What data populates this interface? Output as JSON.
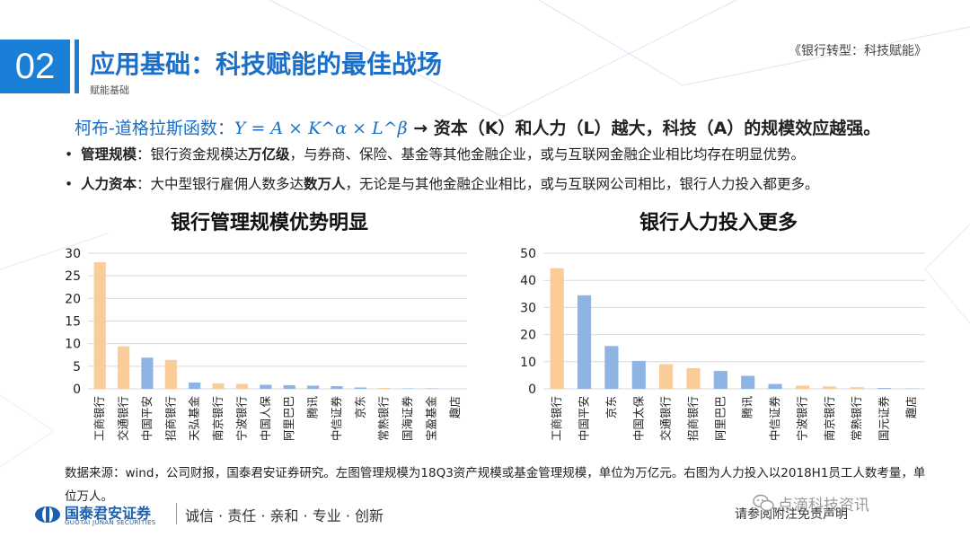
{
  "header": {
    "section_number": "02",
    "title": "应用基础：科技赋能的最佳战场",
    "subtitle": "赋能基础",
    "report_title": "《银行转型：科技赋能》"
  },
  "formula": {
    "label": "柯布-道格拉斯函数：",
    "expression": "Y = A × K^α × L^β",
    "conclusion": "→ 资本（K）和人力（L）越大，科技（A）的规模效应越强。"
  },
  "bullets": [
    {
      "bold": "管理规模",
      "text_a": "：银行资金规模达",
      "bold2": "万亿级",
      "text_b": "，与券商、保险、基金等其他金融企业，或与互联网金融企业相比均存在明显优势。"
    },
    {
      "bold": "人力资本",
      "text_a": "：大中型银行雇佣人数多达",
      "bold2": "数万人",
      "text_b": "，无论是与其他金融企业相比，或与互联网公司相比，银行人力投入都更多。"
    }
  ],
  "colors": {
    "accent": "#1a7fd6",
    "bank": "#f9cc9a",
    "other": "#8eb4e3"
  },
  "chart_data": [
    {
      "type": "bar",
      "title": "银行管理规模优势明显",
      "categories": [
        "工商银行",
        "交通银行",
        "中国平安",
        "招商银行",
        "天弘基金",
        "南京银行",
        "宁波银行",
        "中国人保",
        "阿里巴巴",
        "腾讯",
        "中信证券",
        "京东",
        "常熟银行",
        "国海证券",
        "宝盈基金",
        "趣店"
      ],
      "values": [
        28.0,
        9.4,
        6.9,
        6.4,
        1.4,
        1.2,
        1.1,
        0.9,
        0.8,
        0.7,
        0.6,
        0.3,
        0.2,
        0.1,
        0.1,
        0.0
      ],
      "category_kind": [
        "bank",
        "bank",
        "other",
        "bank",
        "other",
        "bank",
        "bank",
        "other",
        "other",
        "other",
        "other",
        "other",
        "bank",
        "other",
        "other",
        "other"
      ],
      "ylim": [
        0,
        30
      ],
      "yticks": [
        0,
        5,
        10,
        15,
        20,
        25,
        30
      ],
      "grid": true
    },
    {
      "type": "bar",
      "title": "银行人力投入更多",
      "categories": [
        "工商银行",
        "中国平安",
        "京东",
        "中国太保",
        "交通银行",
        "招商银行",
        "阿里巴巴",
        "腾讯",
        "中信证券",
        "宁波银行",
        "南京银行",
        "常熟银行",
        "国元证券",
        "趣店"
      ],
      "values": [
        44.5,
        34.5,
        15.8,
        10.3,
        9.1,
        7.6,
        6.6,
        4.8,
        1.8,
        1.2,
        0.9,
        0.6,
        0.3,
        0.1
      ],
      "category_kind": [
        "bank",
        "other",
        "other",
        "other",
        "bank",
        "bank",
        "other",
        "other",
        "other",
        "bank",
        "bank",
        "bank",
        "other",
        "other"
      ],
      "ylim": [
        0,
        50
      ],
      "yticks": [
        0,
        10,
        20,
        30,
        40,
        50
      ],
      "grid": true
    }
  ],
  "source_note": "数据来源：wind，公司财报，国泰君安证券研究。左图管理规模为18Q3资产规模或基金管理规模，单位为万亿元。右图为人力投入以2018H1员工人数考量，单位万人。",
  "footer": {
    "company_cn": "国泰君安证券",
    "company_en": "GUOTAI JUNAN SECURITIES",
    "values": "诚信 · 责任 · 亲和 · 专业 · 创新",
    "disclaimer": "请参阅附注免责声明",
    "watermark": "点滴科技资讯"
  }
}
